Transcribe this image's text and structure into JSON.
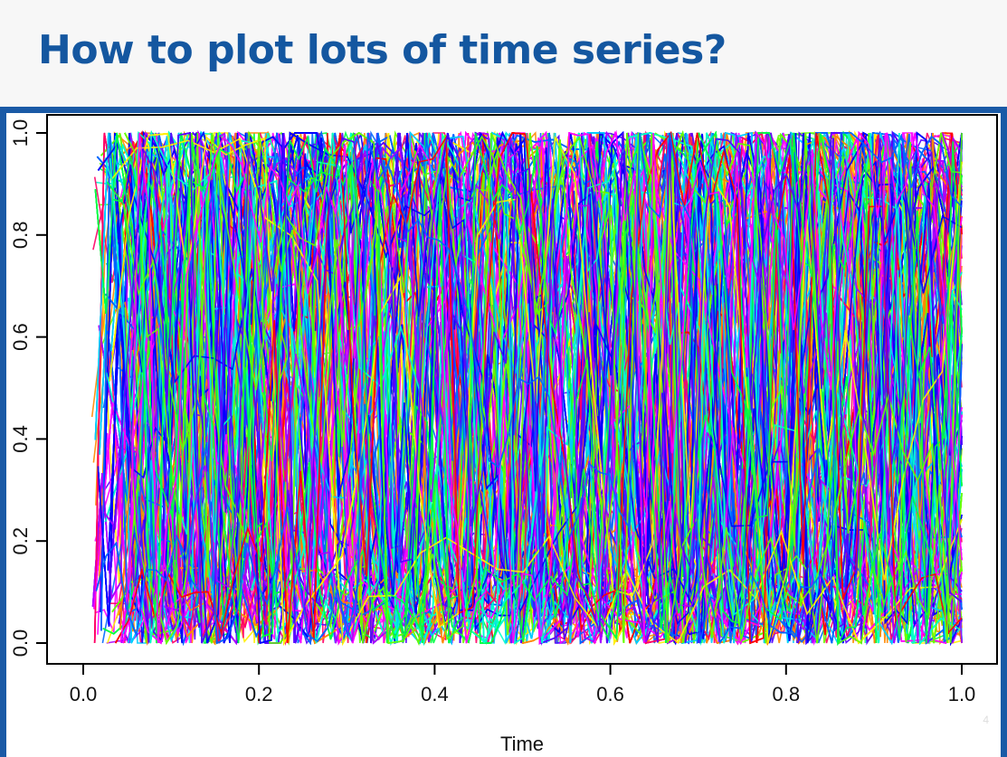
{
  "slide": {
    "title": "How to plot lots of time series?",
    "slide_number": "4"
  },
  "colors": {
    "title": "#1457a0",
    "frame_border": "#1a5aa6",
    "series_palette": [
      "#ff0000",
      "#ff0066",
      "#ff00ff",
      "#aa00ff",
      "#5500ff",
      "#0000ff",
      "#0066ff",
      "#00ccff",
      "#00ffcc",
      "#00ff44",
      "#66ff00",
      "#ffee00",
      "#ff8800"
    ]
  },
  "chart_data": {
    "type": "line",
    "title": "",
    "xlabel": "Time",
    "ylabel": "",
    "xlim": [
      0.0,
      1.0
    ],
    "ylim": [
      0.0,
      1.0
    ],
    "x_ticks": [
      "0.0",
      "0.2",
      "0.4",
      "0.6",
      "0.8",
      "1.0"
    ],
    "y_ticks": [
      "0.0",
      "0.2",
      "0.4",
      "0.6",
      "0.8",
      "1.0"
    ],
    "grid": false,
    "legend": "none",
    "series_count_approx": 400,
    "points_per_series_approx": 100,
    "value_range": [
      0.0,
      1.0
    ],
    "note_on_values": "Hundreds of overlapping series, each fluctuating randomly between 0 and 1 across the full time range; individual values not readable"
  }
}
